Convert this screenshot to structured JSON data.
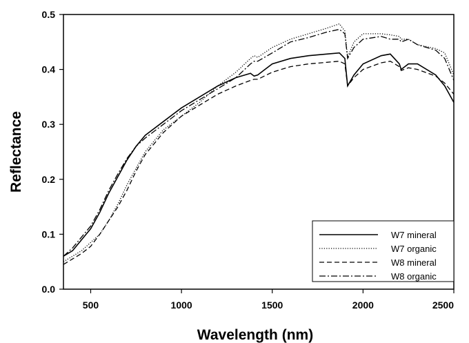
{
  "chart_data": {
    "type": "line",
    "title": "",
    "xlabel": "Wavelength (nm)",
    "ylabel": "Reflectance",
    "xlim": [
      350,
      2500
    ],
    "ylim": [
      0.0,
      0.5
    ],
    "x_ticks": [
      500,
      1000,
      1500,
      2000,
      2500
    ],
    "x_tick_labels": [
      "500",
      "1000",
      "1500",
      "2000",
      "2500"
    ],
    "y_ticks": [
      0.0,
      0.1,
      0.2,
      0.3,
      0.4,
      0.5
    ],
    "y_tick_labels": [
      "0.0",
      "0.1",
      "0.2",
      "0.3",
      "0.4",
      "0.5"
    ],
    "grid": false,
    "legend_position": "bottom-right",
    "series": [
      {
        "name": "W7 mineral",
        "dash": "solid",
        "x": [
          350,
          400,
          450,
          500,
          550,
          600,
          650,
          700,
          750,
          800,
          900,
          1000,
          1100,
          1200,
          1300,
          1380,
          1400,
          1420,
          1500,
          1600,
          1700,
          1800,
          1870,
          1900,
          1915,
          1950,
          2000,
          2100,
          2150,
          2200,
          2210,
          2250,
          2300,
          2400,
          2450,
          2500
        ],
        "y": [
          0.06,
          0.07,
          0.09,
          0.11,
          0.14,
          0.175,
          0.205,
          0.235,
          0.26,
          0.28,
          0.305,
          0.33,
          0.35,
          0.37,
          0.385,
          0.393,
          0.388,
          0.39,
          0.41,
          0.42,
          0.425,
          0.428,
          0.43,
          0.42,
          0.37,
          0.39,
          0.41,
          0.425,
          0.428,
          0.41,
          0.4,
          0.41,
          0.41,
          0.39,
          0.37,
          0.34
        ]
      },
      {
        "name": "W7 organic",
        "dash": "dotted",
        "x": [
          350,
          400,
          450,
          500,
          550,
          600,
          650,
          700,
          750,
          800,
          900,
          1000,
          1100,
          1200,
          1300,
          1380,
          1400,
          1420,
          1500,
          1600,
          1700,
          1800,
          1870,
          1900,
          1915,
          1950,
          2000,
          2100,
          2150,
          2200,
          2210,
          2250,
          2300,
          2400,
          2450,
          2500
        ],
        "y": [
          0.05,
          0.06,
          0.07,
          0.085,
          0.1,
          0.125,
          0.155,
          0.19,
          0.22,
          0.25,
          0.29,
          0.315,
          0.34,
          0.37,
          0.395,
          0.42,
          0.425,
          0.422,
          0.44,
          0.455,
          0.465,
          0.475,
          0.483,
          0.47,
          0.422,
          0.45,
          0.465,
          0.465,
          0.463,
          0.46,
          0.455,
          0.455,
          0.445,
          0.438,
          0.43,
          0.39
        ]
      },
      {
        "name": "W8 mineral",
        "dash": "dashed",
        "x": [
          350,
          400,
          450,
          500,
          550,
          600,
          650,
          700,
          750,
          800,
          900,
          1000,
          1100,
          1200,
          1300,
          1380,
          1400,
          1420,
          1500,
          1600,
          1700,
          1800,
          1870,
          1900,
          1915,
          1950,
          2000,
          2100,
          2150,
          2200,
          2210,
          2250,
          2300,
          2400,
          2450,
          2500
        ],
        "y": [
          0.045,
          0.055,
          0.065,
          0.078,
          0.1,
          0.125,
          0.15,
          0.18,
          0.215,
          0.245,
          0.285,
          0.315,
          0.335,
          0.355,
          0.37,
          0.38,
          0.382,
          0.382,
          0.395,
          0.405,
          0.41,
          0.413,
          0.415,
          0.41,
          0.37,
          0.385,
          0.4,
          0.412,
          0.415,
          0.405,
          0.398,
          0.403,
          0.4,
          0.388,
          0.375,
          0.355
        ]
      },
      {
        "name": "W8 organic",
        "dash": "dashdot",
        "x": [
          350,
          400,
          450,
          500,
          550,
          600,
          650,
          700,
          750,
          800,
          900,
          1000,
          1100,
          1200,
          1300,
          1380,
          1400,
          1420,
          1500,
          1600,
          1700,
          1800,
          1870,
          1900,
          1915,
          1950,
          2000,
          2100,
          2150,
          2200,
          2210,
          2250,
          2300,
          2400,
          2450,
          2500
        ],
        "y": [
          0.06,
          0.075,
          0.095,
          0.115,
          0.145,
          0.18,
          0.21,
          0.238,
          0.26,
          0.275,
          0.3,
          0.325,
          0.345,
          0.365,
          0.385,
          0.41,
          0.415,
          0.415,
          0.43,
          0.45,
          0.458,
          0.468,
          0.473,
          0.465,
          0.42,
          0.44,
          0.455,
          0.46,
          0.455,
          0.455,
          0.45,
          0.455,
          0.445,
          0.435,
          0.42,
          0.38
        ]
      }
    ]
  }
}
